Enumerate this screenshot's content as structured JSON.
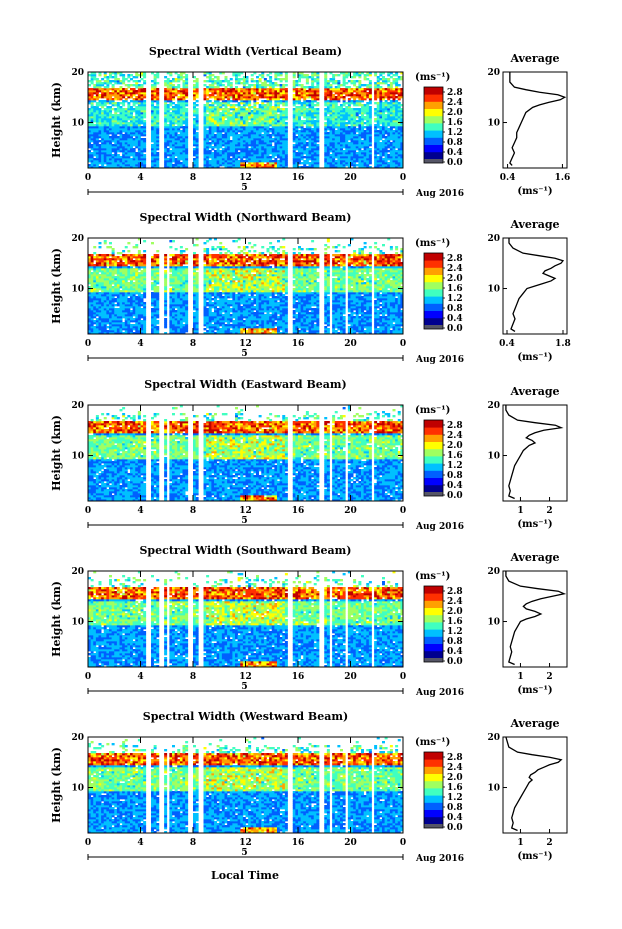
{
  "shared": {
    "xlabel": "Local Time",
    "date_label": "Aug 2016",
    "day_label": "5",
    "ylabel": "Height (km)",
    "unit_label": "(ms⁻¹)",
    "x_ticks": [
      "0",
      "4",
      "8",
      "12",
      "16",
      "20",
      "0"
    ],
    "y_ticks": [
      "20",
      "10"
    ],
    "cbar_ticks": [
      "2.8",
      "2.4",
      "2.0",
      "1.6",
      "1.2",
      "0.8",
      "0.4",
      "0.0"
    ],
    "avg_title": "Average",
    "colors": {
      "jet": [
        "#00008f",
        "#0000ff",
        "#0060ff",
        "#00c0ff",
        "#40ffc0",
        "#a0ff60",
        "#ffff00",
        "#ffa000",
        "#ff3000",
        "#c00000"
      ],
      "cbar_base": "#555566",
      "line": "#000000"
    }
  },
  "chart_data": [
    {
      "type": "heatmap",
      "title": "Spectral Width (Vertical Beam)",
      "xlim": [
        0,
        24
      ],
      "ylim": [
        1,
        20
      ],
      "clim": [
        0.0,
        3.0
      ],
      "avg": {
        "xticks": [
          "0.4",
          "1.6"
        ],
        "xlim": [
          0.3,
          1.7
        ],
        "profile_h": [
          1.5,
          2,
          3,
          4,
          5,
          6,
          7,
          8,
          9,
          10,
          11,
          12,
          13,
          13.5,
          14,
          14.5,
          15,
          15.5,
          16,
          16.5,
          17,
          18,
          19,
          20
        ],
        "profile_v": [
          0.5,
          0.45,
          0.5,
          0.55,
          0.5,
          0.55,
          0.6,
          0.6,
          0.65,
          0.7,
          0.75,
          0.8,
          0.95,
          1.1,
          1.3,
          1.55,
          1.65,
          1.5,
          1.1,
          0.8,
          0.55,
          0.45,
          0.45,
          0.45
        ]
      }
    },
    {
      "type": "heatmap",
      "title": "Spectral Width (Northward Beam)",
      "xlim": [
        0,
        24
      ],
      "ylim": [
        1,
        20
      ],
      "clim": [
        0.0,
        3.0
      ],
      "avg": {
        "xticks": [
          "0.4",
          "1.8"
        ],
        "xlim": [
          0.3,
          1.9
        ],
        "profile_h": [
          1.5,
          2,
          3,
          4,
          5,
          6,
          7,
          8,
          9,
          10,
          10.5,
          11,
          11.5,
          12,
          12.5,
          13,
          13.5,
          14,
          14.5,
          15,
          15.5,
          16,
          16.5,
          17,
          18,
          19,
          20
        ],
        "profile_v": [
          0.6,
          0.5,
          0.55,
          0.6,
          0.55,
          0.6,
          0.65,
          0.7,
          0.8,
          0.9,
          1.1,
          1.3,
          1.5,
          1.6,
          1.45,
          1.3,
          1.35,
          1.5,
          1.6,
          1.75,
          1.8,
          1.6,
          1.2,
          0.8,
          0.55,
          0.45,
          0.45
        ]
      }
    },
    {
      "type": "heatmap",
      "title": "Spectral Width (Eastward Beam)",
      "xlim": [
        0,
        24
      ],
      "ylim": [
        1,
        20
      ],
      "clim": [
        0.0,
        3.0
      ],
      "avg": {
        "xticks": [
          "1",
          "2"
        ],
        "xlim": [
          0.4,
          2.6
        ],
        "profile_h": [
          1.5,
          2,
          3,
          4,
          5,
          6,
          7,
          8,
          9,
          10,
          11,
          12,
          12.5,
          13,
          13.5,
          14,
          14.5,
          15,
          15.5,
          16,
          16.5,
          17,
          18,
          19,
          20
        ],
        "profile_v": [
          0.8,
          0.6,
          0.65,
          0.6,
          0.65,
          0.7,
          0.75,
          0.8,
          0.9,
          1.0,
          1.1,
          1.3,
          1.5,
          1.4,
          1.2,
          1.3,
          1.5,
          1.8,
          2.4,
          2.2,
          1.5,
          0.9,
          0.6,
          0.5,
          0.5
        ]
      }
    },
    {
      "type": "heatmap",
      "title": "Spectral Width (Southward Beam)",
      "xlim": [
        0,
        24
      ],
      "ylim": [
        1,
        20
      ],
      "clim": [
        0.0,
        3.0
      ],
      "avg": {
        "xticks": [
          "1",
          "2"
        ],
        "xlim": [
          0.4,
          2.6
        ],
        "profile_h": [
          1.5,
          2,
          3,
          4,
          5,
          6,
          7,
          8,
          9,
          10,
          10.5,
          11,
          11.5,
          12,
          12.5,
          13,
          13.5,
          14,
          14.5,
          15,
          15.5,
          16,
          16.5,
          17,
          18,
          19,
          20
        ],
        "profile_v": [
          0.8,
          0.6,
          0.65,
          0.7,
          0.65,
          0.7,
          0.75,
          0.8,
          0.9,
          1.0,
          1.2,
          1.5,
          1.7,
          1.5,
          1.2,
          1.1,
          1.2,
          1.4,
          1.7,
          2.1,
          2.5,
          2.3,
          1.6,
          1.0,
          0.6,
          0.5,
          0.5
        ]
      }
    },
    {
      "type": "heatmap",
      "title": "Spectral Width (Westward Beam)",
      "xlim": [
        0,
        24
      ],
      "ylim": [
        1,
        20
      ],
      "clim": [
        0.0,
        3.0
      ],
      "avg": {
        "xticks": [
          "1",
          "2"
        ],
        "xlim": [
          0.4,
          2.6
        ],
        "profile_h": [
          1.5,
          2,
          3,
          4,
          5,
          6,
          7,
          8,
          9,
          10,
          11,
          11.5,
          12,
          12.5,
          13,
          13.5,
          14,
          14.5,
          15,
          15.5,
          16,
          16.5,
          17,
          18,
          19,
          20
        ],
        "profile_v": [
          0.9,
          0.7,
          0.75,
          0.7,
          0.75,
          0.8,
          0.9,
          1.0,
          1.1,
          1.2,
          1.3,
          1.4,
          1.3,
          1.35,
          1.5,
          1.6,
          1.8,
          2.0,
          2.3,
          2.4,
          2.0,
          1.4,
          0.9,
          0.6,
          0.55,
          0.5
        ]
      }
    }
  ]
}
